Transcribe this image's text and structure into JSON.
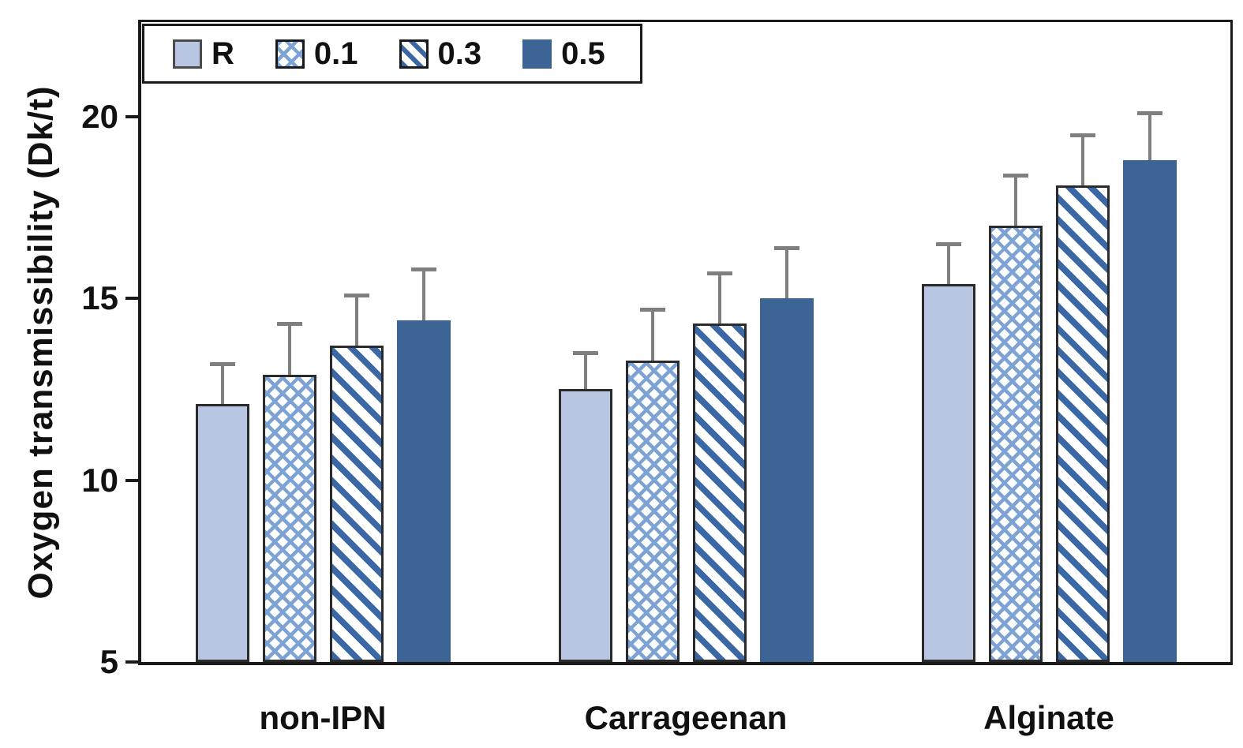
{
  "chart_data": {
    "type": "bar",
    "title": "",
    "ylabel": "Oxygen transmissibility (Dk/t)",
    "xlabel": "",
    "categories": [
      "non-IPN",
      "Carrageenan",
      "Alginate"
    ],
    "series": [
      {
        "name": "R",
        "style": "solid-light",
        "values": [
          12.1,
          12.5,
          15.4
        ],
        "errors_plus": [
          1.1,
          1.0,
          1.1
        ]
      },
      {
        "name": "0.1",
        "style": "crosshatch",
        "values": [
          12.9,
          13.3,
          17.0
        ],
        "errors_plus": [
          1.4,
          1.4,
          1.4
        ]
      },
      {
        "name": "0.3",
        "style": "diagonal-stripes",
        "values": [
          13.7,
          14.3,
          18.1
        ],
        "errors_plus": [
          1.4,
          1.4,
          1.4
        ]
      },
      {
        "name": "0.5",
        "style": "solid-dark",
        "values": [
          14.4,
          15.0,
          18.8
        ],
        "errors_plus": [
          1.4,
          1.4,
          1.3
        ]
      }
    ],
    "y_axis": {
      "min": 5,
      "max": 22.6,
      "ticks": [
        5,
        10,
        15,
        20
      ]
    },
    "legend": {
      "position": "top-left",
      "entries": [
        "R",
        "0.1",
        "0.3",
        "0.5"
      ]
    },
    "grid": false,
    "error_bars": "upper-only"
  },
  "colors": {
    "solid_light": "#b8c6e2",
    "crosshatch_blue": "#7da2d4",
    "stripe_blue": "#3a68a6",
    "solid_dark": "#3c6494",
    "bar_border": "#2b2b2b",
    "axis": "#1a1a1a",
    "error_bar": "#7f7f7f",
    "text": "#111111",
    "background": "#ffffff"
  }
}
